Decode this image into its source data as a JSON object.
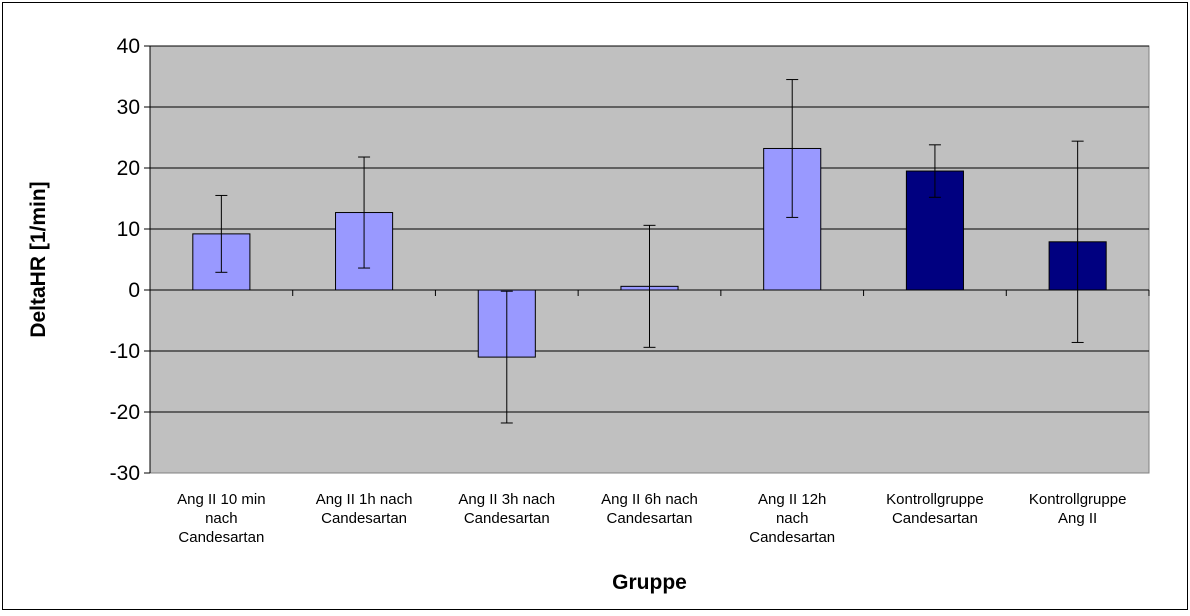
{
  "chart_data": {
    "type": "bar",
    "title": "",
    "xlabel": "Gruppe",
    "ylabel": "DeltaHR [1/min]",
    "ylim": [
      -30,
      40
    ],
    "yticks": [
      40,
      30,
      20,
      10,
      0,
      -10,
      -20,
      -30
    ],
    "grid": true,
    "plot_background": "#c0c0c0",
    "categories": [
      [
        "Ang II 10 min",
        "nach",
        "Candesartan"
      ],
      [
        "Ang II 1h nach",
        "Candesartan"
      ],
      [
        "Ang II 3h nach",
        "Candesartan"
      ],
      [
        "Ang II 6h nach",
        "Candesartan"
      ],
      [
        "Ang II 12h",
        "nach",
        "Candesartan"
      ],
      [
        "Kontrollgruppe",
        "Candesartan"
      ],
      [
        "Kontrollgruppe",
        "Ang II"
      ]
    ],
    "values": [
      9.2,
      12.7,
      -11.0,
      0.6,
      23.2,
      19.5,
      7.9
    ],
    "error_bars": [
      6.3,
      9.1,
      10.8,
      10.0,
      11.3,
      4.3,
      16.5
    ],
    "bar_colors": [
      "#9999ff",
      "#9999ff",
      "#9999ff",
      "#9999ff",
      "#9999ff",
      "#000080",
      "#000080"
    ]
  }
}
